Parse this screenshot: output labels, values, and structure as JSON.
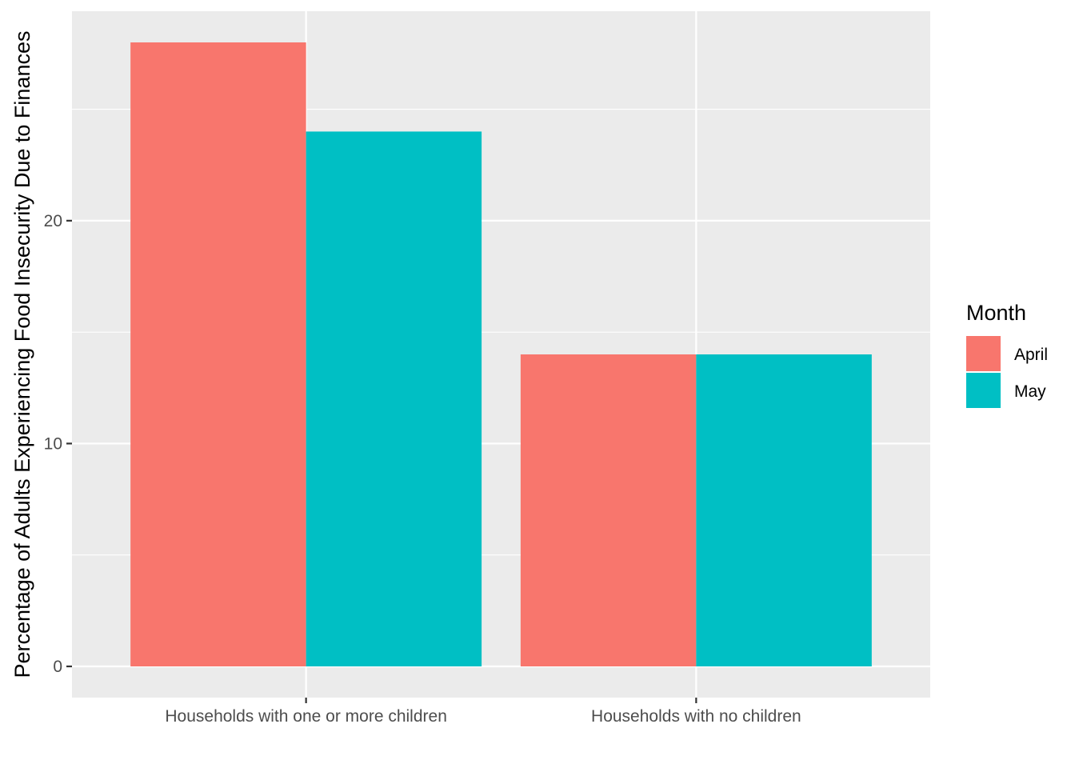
{
  "chart_data": {
    "type": "bar",
    "ylabel": "Percentage of Adults Experiencing Food Insecurity Due to Finances",
    "xlabel": "",
    "categories": [
      "Households with one or more children",
      "Households with no children"
    ],
    "series": [
      {
        "name": "April",
        "color": "#F8766D",
        "values": [
          28.0,
          14.0
        ]
      },
      {
        "name": "May",
        "color": "#00BFC4",
        "values": [
          24.0,
          14.0
        ]
      }
    ],
    "ylim": [
      -1.4,
      29.4
    ],
    "yticks": [
      0,
      10,
      20
    ],
    "grid": true,
    "legend": {
      "title": "Month",
      "position": "right"
    }
  }
}
